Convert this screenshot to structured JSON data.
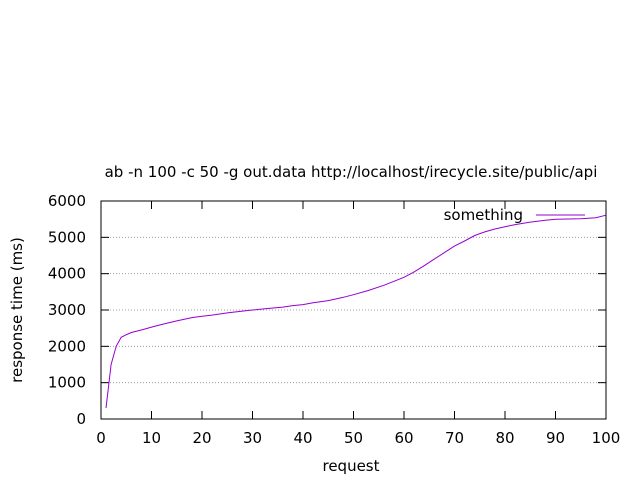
{
  "chart_data": {
    "type": "line",
    "title": "ab -n 100 -c 50 -g out.data http://localhost/irecycle.site/public/api",
    "xlabel": "request",
    "ylabel": "response time (ms)",
    "xlim": [
      0,
      100
    ],
    "ylim": [
      0,
      6000
    ],
    "xticks": [
      0,
      10,
      20,
      30,
      40,
      50,
      60,
      70,
      80,
      90,
      100
    ],
    "yticks": [
      0,
      1000,
      2000,
      3000,
      4000,
      5000,
      6000
    ],
    "grid": "horizontal dotted",
    "legend_position": "top-right",
    "series": [
      {
        "name": "something",
        "color": "#9400d3",
        "x": [
          1,
          2,
          3,
          4,
          5,
          6,
          8,
          10,
          12,
          15,
          18,
          20,
          22,
          25,
          28,
          30,
          33,
          36,
          38,
          40,
          42,
          45,
          48,
          50,
          53,
          56,
          58,
          60,
          62,
          64,
          66,
          68,
          70,
          72,
          74,
          76,
          78,
          80,
          82,
          85,
          88,
          90,
          95,
          98,
          100
        ],
        "values": [
          300,
          1500,
          2000,
          2250,
          2320,
          2380,
          2450,
          2530,
          2600,
          2700,
          2790,
          2830,
          2860,
          2920,
          2970,
          3000,
          3040,
          3080,
          3120,
          3150,
          3200,
          3260,
          3350,
          3420,
          3540,
          3680,
          3790,
          3900,
          4050,
          4220,
          4400,
          4580,
          4760,
          4900,
          5050,
          5150,
          5230,
          5290,
          5350,
          5420,
          5470,
          5500,
          5510,
          5540,
          5610
        ]
      }
    ]
  }
}
